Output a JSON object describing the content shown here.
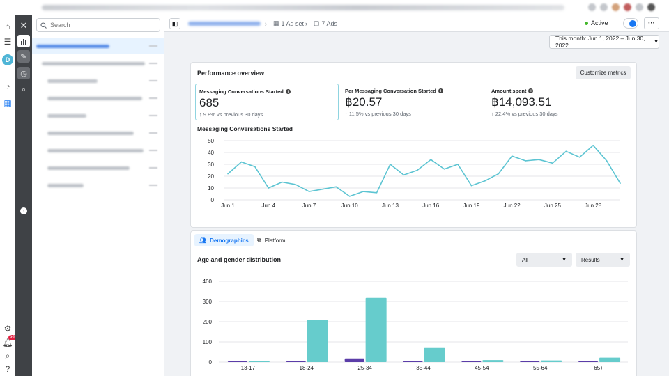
{
  "search": {
    "placeholder": "Search"
  },
  "header": {
    "adset_label": "1 Ad set",
    "ads_label": "7 Ads",
    "status": "Active",
    "more": "···"
  },
  "date_range": "This month: Jun 1, 2022 – Jun 30, 2022",
  "notifications_count": "99",
  "rail_avatar": "D",
  "performance": {
    "title": "Performance overview",
    "customize_label": "Customize metrics",
    "metrics": [
      {
        "label": "Messaging Conversations Started",
        "value": "685",
        "change": "9.8% vs previous 30 days"
      },
      {
        "label": "Per Messaging Conversation Started",
        "value": "฿20.57",
        "change": "11.5% vs previous 30 days"
      },
      {
        "label": "Amount spent",
        "value": "฿14,093.51",
        "change": "22.4% vs previous 30 days"
      }
    ],
    "chart_title": "Messaging Conversations Started"
  },
  "breakdown": {
    "tabs": [
      "Demographics",
      "Platform"
    ],
    "title": "Age and gender distribution",
    "filter_all": "All",
    "filter_results": "Results"
  },
  "colors": {
    "accent": "#1877f2",
    "line": "#5cc4d2",
    "teal": "#66cccc",
    "purple": "#5b3da8"
  },
  "icons": [
    "home-icon",
    "menu-icon",
    "dashboard-icon",
    "grid-icon",
    "close-icon",
    "chart-icon",
    "pencil-icon",
    "clock-icon",
    "magnify-icon",
    "gear-icon",
    "bell-icon",
    "search-icon",
    "help-icon"
  ],
  "chart_data": [
    {
      "type": "line",
      "title": "Messaging Conversations Started",
      "x": [
        1,
        2,
        3,
        4,
        5,
        6,
        7,
        8,
        9,
        10,
        11,
        12,
        13,
        14,
        15,
        16,
        17,
        18,
        19,
        20,
        21,
        22,
        23,
        24,
        25,
        26,
        27,
        28,
        29,
        30
      ],
      "values": [
        22,
        32,
        28,
        10,
        15,
        13,
        7,
        9,
        11,
        3,
        7,
        6,
        30,
        21,
        25,
        34,
        26,
        30,
        12,
        16,
        22,
        37,
        33,
        34,
        31,
        41,
        36,
        46,
        33,
        14
      ],
      "x_ticks": [
        {
          "x": 1,
          "label": "Jun 1"
        },
        {
          "x": 4,
          "label": "Jun 4"
        },
        {
          "x": 7,
          "label": "Jun 7"
        },
        {
          "x": 10,
          "label": "Jun 10"
        },
        {
          "x": 13,
          "label": "Jun 13"
        },
        {
          "x": 16,
          "label": "Jun 16"
        },
        {
          "x": 19,
          "label": "Jun 19"
        },
        {
          "x": 22,
          "label": "Jun 22"
        },
        {
          "x": 25,
          "label": "Jun 25"
        },
        {
          "x": 28,
          "label": "Jun 28"
        }
      ],
      "y_ticks": [
        0,
        10,
        20,
        30,
        40,
        50
      ],
      "ylim": [
        0,
        50
      ]
    },
    {
      "type": "bar",
      "title": "Age and gender distribution",
      "categories": [
        "13-17",
        "18-24",
        "25-34",
        "35-44",
        "45-54",
        "55-64",
        "65+"
      ],
      "series": [
        {
          "values": [
            5,
            5,
            18,
            5,
            5,
            5,
            5
          ]
        },
        {
          "values": [
            5,
            210,
            318,
            70,
            10,
            8,
            22
          ]
        }
      ],
      "y_ticks": [
        0,
        100,
        200,
        300,
        400
      ],
      "ylim": [
        0,
        400
      ]
    }
  ]
}
